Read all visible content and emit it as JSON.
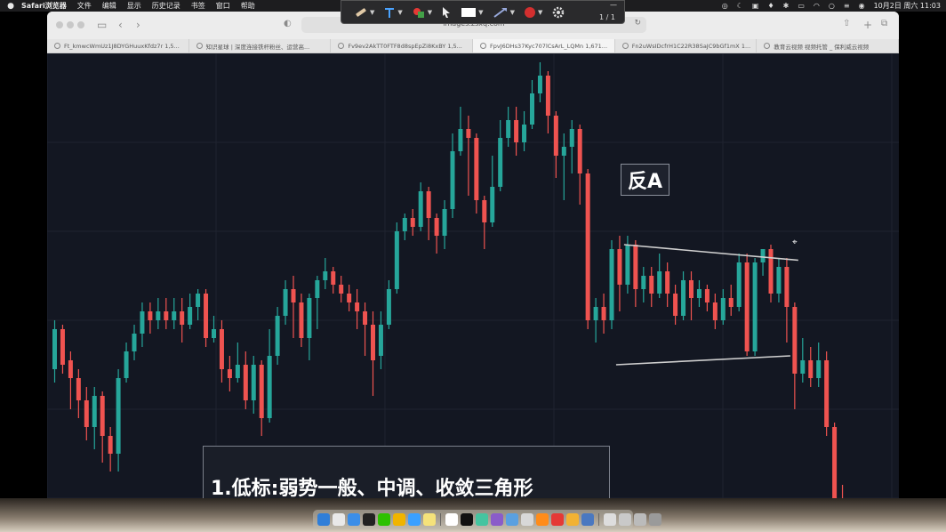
{
  "menubar": {
    "app_name": "Safari浏览器",
    "items": [
      "文件",
      "编辑",
      "显示",
      "历史记录",
      "书签",
      "窗口",
      "帮助"
    ],
    "date_time": "10月2日 周六 11:03"
  },
  "annotation_toolbar": {
    "page_count": "1 / 1",
    "icons": [
      "highlighter-icon",
      "text-tool-icon",
      "color-fill-icon",
      "pointer-icon",
      "rectangle-icon",
      "line-tool-icon",
      "record-icon",
      "settings-icon"
    ]
  },
  "browser": {
    "url": "images.zsxq.com",
    "tabs": [
      {
        "label": "Ft_kmwcWmUz1J8DYGHuuxKfdz7r 1,5..."
      },
      {
        "label": "知识星球 | 深度连接铁杆粉丝、运营高..."
      },
      {
        "label": "Fv9ev2AkTT0FTF8d8spEpZi8KxBY 1,5..."
      },
      {
        "label": "FpvJ6DHs37Kyc707lCsArL_LQMn 1,671..."
      },
      {
        "label": "Fn2uWsIDcfrH1C22R38SaJC9bGf1mX 1..."
      },
      {
        "label": "教育云视频 视频托管 _ 保利威云视频"
      }
    ]
  },
  "annotations": {
    "tag": "反A",
    "caption": "1.低标:弱势一般、中调、收敛三角形"
  },
  "colors": {
    "chart_bg": "#131722",
    "bull": "#26a69a",
    "bear": "#ef5350",
    "trendline": "#d0d0d0"
  },
  "chart_data": {
    "type": "candlestick",
    "title": "",
    "xlabel": "",
    "ylabel": "",
    "ylim": [
      0,
      100
    ],
    "candles": [
      {
        "o": 31,
        "c": 40,
        "h": 42,
        "l": 28
      },
      {
        "o": 40,
        "c": 32,
        "h": 41,
        "l": 30
      },
      {
        "o": 33,
        "c": 29,
        "h": 35,
        "l": 22
      },
      {
        "o": 29,
        "c": 24,
        "h": 31,
        "l": 20
      },
      {
        "o": 24,
        "c": 18,
        "h": 27,
        "l": 15
      },
      {
        "o": 18,
        "c": 25,
        "h": 27,
        "l": 13
      },
      {
        "o": 25,
        "c": 16,
        "h": 26,
        "l": 10
      },
      {
        "o": 16,
        "c": 12,
        "h": 18,
        "l": 8
      },
      {
        "o": 12,
        "c": 29,
        "h": 31,
        "l": 8
      },
      {
        "o": 29,
        "c": 35,
        "h": 37,
        "l": 28
      },
      {
        "o": 35,
        "c": 39,
        "h": 41,
        "l": 33
      },
      {
        "o": 39,
        "c": 44,
        "h": 46,
        "l": 36
      },
      {
        "o": 44,
        "c": 42,
        "h": 46,
        "l": 39
      },
      {
        "o": 42,
        "c": 44,
        "h": 47,
        "l": 40
      },
      {
        "o": 44,
        "c": 42,
        "h": 47,
        "l": 40
      },
      {
        "o": 42,
        "c": 44,
        "h": 47,
        "l": 40
      },
      {
        "o": 44,
        "c": 41,
        "h": 47,
        "l": 37
      },
      {
        "o": 41,
        "c": 45,
        "h": 48,
        "l": 40
      },
      {
        "o": 45,
        "c": 48,
        "h": 49,
        "l": 42
      },
      {
        "o": 48,
        "c": 38,
        "h": 49,
        "l": 36
      },
      {
        "o": 38,
        "c": 40,
        "h": 43,
        "l": 37
      },
      {
        "o": 40,
        "c": 31,
        "h": 42,
        "l": 28
      },
      {
        "o": 31,
        "c": 29,
        "h": 34,
        "l": 26
      },
      {
        "o": 29,
        "c": 32,
        "h": 37,
        "l": 28
      },
      {
        "o": 32,
        "c": 24,
        "h": 35,
        "l": 22
      },
      {
        "o": 24,
        "c": 32,
        "h": 34,
        "l": 21
      },
      {
        "o": 32,
        "c": 20,
        "h": 33,
        "l": 16
      },
      {
        "o": 20,
        "c": 34,
        "h": 40,
        "l": 19
      },
      {
        "o": 34,
        "c": 43,
        "h": 45,
        "l": 32
      },
      {
        "o": 43,
        "c": 49,
        "h": 51,
        "l": 41
      },
      {
        "o": 49,
        "c": 46,
        "h": 52,
        "l": 38
      },
      {
        "o": 46,
        "c": 38,
        "h": 48,
        "l": 36
      },
      {
        "o": 38,
        "c": 47,
        "h": 48,
        "l": 33
      },
      {
        "o": 47,
        "c": 51,
        "h": 52,
        "l": 40
      },
      {
        "o": 51,
        "c": 53,
        "h": 56,
        "l": 49
      },
      {
        "o": 53,
        "c": 50,
        "h": 54,
        "l": 48
      },
      {
        "o": 50,
        "c": 48,
        "h": 52,
        "l": 46
      },
      {
        "o": 48,
        "c": 46,
        "h": 50,
        "l": 44
      },
      {
        "o": 46,
        "c": 44,
        "h": 49,
        "l": 40
      },
      {
        "o": 44,
        "c": 41,
        "h": 46,
        "l": 34
      },
      {
        "o": 41,
        "c": 33,
        "h": 44,
        "l": 25
      },
      {
        "o": 34,
        "c": 41,
        "h": 44,
        "l": 31
      },
      {
        "o": 41,
        "c": 49,
        "h": 51,
        "l": 40
      },
      {
        "o": 49,
        "c": 62,
        "h": 64,
        "l": 48
      },
      {
        "o": 62,
        "c": 65,
        "h": 66,
        "l": 60
      },
      {
        "o": 65,
        "c": 63,
        "h": 67,
        "l": 61
      },
      {
        "o": 63,
        "c": 71,
        "h": 73,
        "l": 62
      },
      {
        "o": 71,
        "c": 65,
        "h": 72,
        "l": 60
      },
      {
        "o": 65,
        "c": 61,
        "h": 66,
        "l": 57
      },
      {
        "o": 61,
        "c": 67,
        "h": 69,
        "l": 58
      },
      {
        "o": 67,
        "c": 80,
        "h": 84,
        "l": 65
      },
      {
        "o": 80,
        "c": 85,
        "h": 90,
        "l": 79
      },
      {
        "o": 85,
        "c": 83,
        "h": 88,
        "l": 70
      },
      {
        "o": 83,
        "c": 69,
        "h": 84,
        "l": 66
      },
      {
        "o": 69,
        "c": 64,
        "h": 70,
        "l": 58
      },
      {
        "o": 64,
        "c": 72,
        "h": 79,
        "l": 63
      },
      {
        "o": 72,
        "c": 83,
        "h": 87,
        "l": 71
      },
      {
        "o": 83,
        "c": 87,
        "h": 90,
        "l": 81
      },
      {
        "o": 87,
        "c": 82,
        "h": 90,
        "l": 79
      },
      {
        "o": 82,
        "c": 86,
        "h": 89,
        "l": 80
      },
      {
        "o": 86,
        "c": 93,
        "h": 96,
        "l": 85
      },
      {
        "o": 93,
        "c": 97,
        "h": 100,
        "l": 91
      },
      {
        "o": 97,
        "c": 88,
        "h": 98,
        "l": 84
      },
      {
        "o": 88,
        "c": 79,
        "h": 89,
        "l": 74
      },
      {
        "o": 79,
        "c": 81,
        "h": 84,
        "l": 69
      },
      {
        "o": 81,
        "c": 85,
        "h": 87,
        "l": 75
      },
      {
        "o": 85,
        "c": 75,
        "h": 86,
        "l": 68
      },
      {
        "o": 75,
        "c": 42,
        "h": 76,
        "l": 40
      },
      {
        "o": 42,
        "c": 45,
        "h": 47,
        "l": 37
      },
      {
        "o": 45,
        "c": 42,
        "h": 48,
        "l": 39
      },
      {
        "o": 42,
        "c": 58,
        "h": 60,
        "l": 40
      },
      {
        "o": 58,
        "c": 50,
        "h": 61,
        "l": 44
      },
      {
        "o": 50,
        "c": 59,
        "h": 61,
        "l": 48
      },
      {
        "o": 59,
        "c": 49,
        "h": 60,
        "l": 45
      },
      {
        "o": 49,
        "c": 52,
        "h": 54,
        "l": 46
      },
      {
        "o": 52,
        "c": 48,
        "h": 54,
        "l": 45
      },
      {
        "o": 48,
        "c": 53,
        "h": 57,
        "l": 47
      },
      {
        "o": 53,
        "c": 48,
        "h": 55,
        "l": 45
      },
      {
        "o": 48,
        "c": 43,
        "h": 50,
        "l": 41
      },
      {
        "o": 43,
        "c": 51,
        "h": 53,
        "l": 42
      },
      {
        "o": 51,
        "c": 47,
        "h": 53,
        "l": 42
      },
      {
        "o": 47,
        "c": 49,
        "h": 51,
        "l": 45
      },
      {
        "o": 49,
        "c": 46,
        "h": 50,
        "l": 44
      },
      {
        "o": 46,
        "c": 42,
        "h": 48,
        "l": 40
      },
      {
        "o": 42,
        "c": 47,
        "h": 49,
        "l": 41
      },
      {
        "o": 47,
        "c": 45,
        "h": 50,
        "l": 43
      },
      {
        "o": 45,
        "c": 55,
        "h": 57,
        "l": 44
      },
      {
        "o": 55,
        "c": 35,
        "h": 57,
        "l": 34
      },
      {
        "o": 35,
        "c": 55,
        "h": 56,
        "l": 34
      },
      {
        "o": 55,
        "c": 58,
        "h": 58,
        "l": 52
      },
      {
        "o": 58,
        "c": 48,
        "h": 59,
        "l": 46
      },
      {
        "o": 48,
        "c": 54,
        "h": 56,
        "l": 46
      },
      {
        "o": 54,
        "c": 45,
        "h": 56,
        "l": 37
      },
      {
        "o": 45,
        "c": 30,
        "h": 46,
        "l": 22
      },
      {
        "o": 30,
        "c": 33,
        "h": 38,
        "l": 28
      },
      {
        "o": 33,
        "c": 29,
        "h": 36,
        "l": 27
      },
      {
        "o": 29,
        "c": 33,
        "h": 37,
        "l": 27
      },
      {
        "o": 33,
        "c": 18,
        "h": 35,
        "l": 16
      },
      {
        "o": 18,
        "c": 2,
        "h": 19,
        "l": 0
      },
      {
        "o": 2,
        "c": 0,
        "h": 5,
        "l": -3
      }
    ],
    "trendlines": [
      {
        "name": "upper",
        "x": [
          72,
          93
        ],
        "y": [
          59,
          55.5
        ]
      },
      {
        "name": "lower",
        "x": [
          71,
          92
        ],
        "y": [
          32,
          34
        ]
      }
    ]
  }
}
